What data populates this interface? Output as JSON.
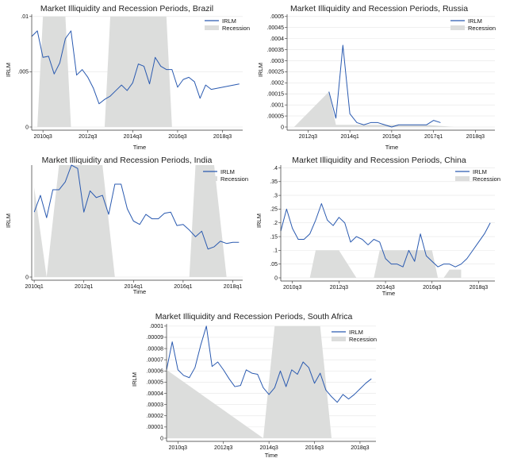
{
  "chart_data": [
    {
      "id": "brazil",
      "type": "line",
      "title": "Market Illiquidity and Recession Periods, Brazil",
      "xlabel": "Time",
      "ylabel": "IRLM",
      "xlim": [
        2010.0,
        2019.4
      ],
      "ylim": [
        0,
        0.0102
      ],
      "yticks": [
        {
          "v": 0,
          "label": "0"
        },
        {
          "v": 0.005,
          "label": ".005"
        },
        {
          "v": 0.01,
          "label": ".01"
        }
      ],
      "xticks": [
        {
          "v": 2010.5,
          "label": "2010q3"
        },
        {
          "v": 2012.5,
          "label": "2012q3"
        },
        {
          "v": 2014.5,
          "label": "2014q3"
        },
        {
          "v": 2016.5,
          "label": "2016q3"
        },
        {
          "v": 2018.5,
          "label": "2018q3"
        }
      ],
      "legend": {
        "line": "IRLM",
        "area": "Recession"
      },
      "series": [
        {
          "name": "IRLM",
          "x": [
            2010.0,
            2010.25,
            2010.5,
            2010.75,
            2011.0,
            2011.25,
            2011.5,
            2011.75,
            2012.0,
            2012.25,
            2012.5,
            2012.75,
            2013.0,
            2013.25,
            2013.5,
            2013.75,
            2014.0,
            2014.25,
            2014.5,
            2014.75,
            2015.0,
            2015.25,
            2015.5,
            2015.75,
            2016.0,
            2016.25,
            2016.5,
            2016.75,
            2017.0,
            2017.25,
            2017.5,
            2017.75,
            2018.0,
            2018.25,
            2018.5,
            2018.75,
            2019.0,
            2019.25
          ],
          "values": [
            0.0082,
            0.0087,
            0.0063,
            0.0064,
            0.0048,
            0.0058,
            0.008,
            0.0087,
            0.0047,
            0.0052,
            0.0045,
            0.0035,
            0.0021,
            0.0025,
            0.0028,
            0.0033,
            0.0038,
            0.0033,
            0.004,
            0.0057,
            0.0055,
            0.0039,
            0.0063,
            0.0055,
            0.0052,
            0.0052,
            0.0036,
            0.0043,
            0.0045,
            0.0041,
            0.0026,
            0.0038,
            0.0034,
            0.0035,
            0.0036,
            0.0037,
            0.0038,
            0.0039
          ]
        }
      ],
      "recession": {
        "x": [
          2010.0,
          2010.25,
          2010.5,
          2011.5,
          2011.75,
          2013.25,
          2013.5,
          2016.0,
          2016.25,
          2017.25,
          2017.5
        ],
        "values": [
          0,
          0,
          0.01,
          0.01,
          0,
          0,
          0.01,
          0.01,
          0,
          0,
          0
        ]
      }
    },
    {
      "id": "russia",
      "type": "line",
      "title": "Market Illiquidity and Recession Periods, Russia",
      "xlabel": "Time",
      "ylabel": "IRLM",
      "xlim": [
        2011.75,
        2019.2
      ],
      "ylim": [
        0,
        0.00051
      ],
      "yticks": [
        {
          "v": 0,
          "label": "0"
        },
        {
          "v": 5e-05,
          "label": ".00005"
        },
        {
          "v": 0.0001,
          "label": ".0001"
        },
        {
          "v": 0.00015,
          "label": ".00015"
        },
        {
          "v": 0.0002,
          "label": ".0002"
        },
        {
          "v": 0.00025,
          "label": ".00025"
        },
        {
          "v": 0.0003,
          "label": ".0003"
        },
        {
          "v": 0.00035,
          "label": ".00035"
        },
        {
          "v": 0.0004,
          "label": ".0004"
        },
        {
          "v": 0.00045,
          "label": ".00045"
        },
        {
          "v": 0.0005,
          "label": ".0005"
        }
      ],
      "xticks": [
        {
          "v": 2012.5,
          "label": "2012q3"
        },
        {
          "v": 2014.0,
          "label": "2014q1"
        },
        {
          "v": 2015.5,
          "label": "2015q3"
        },
        {
          "v": 2017.0,
          "label": "2017q1"
        },
        {
          "v": 2018.5,
          "label": "2018q3"
        }
      ],
      "legend": {
        "line": "IRLM",
        "area": "Recession"
      },
      "series": [
        {
          "name": "IRLM",
          "x": [
            2013.25,
            2013.5,
            2013.75,
            2014.0,
            2014.25,
            2014.5,
            2014.75,
            2015.0,
            2015.25,
            2015.5,
            2015.75,
            2016.0,
            2016.25,
            2016.5,
            2016.75,
            2017.0,
            2017.25
          ],
          "values": [
            0.00016,
            4e-05,
            0.00037,
            6e-05,
            2e-05,
            1e-05,
            2e-05,
            2e-05,
            1e-05,
            0.0,
            1e-05,
            1e-05,
            1e-05,
            1e-05,
            1e-05,
            3e-05,
            2e-05
          ]
        }
      ],
      "recession": {
        "x": [
          2012.0,
          2013.25,
          2013.5,
          2016.75,
          2017.75
        ],
        "values": [
          0,
          0.00016,
          1e-05,
          1e-05,
          0
        ]
      }
    },
    {
      "id": "india",
      "type": "line",
      "title": "Market Illiquidity and Recession Periods, India",
      "xlabel": "Time",
      "ylabel": "IRLM",
      "xlim": [
        2009.9,
        2018.4
      ],
      "ylim": [
        0,
        1.0
      ],
      "yticks": [
        {
          "v": 0,
          "label": "0"
        }
      ],
      "xticks": [
        {
          "v": 2010.0,
          "label": "2010q1"
        },
        {
          "v": 2012.0,
          "label": "2012q1"
        },
        {
          "v": 2014.0,
          "label": "2014q1"
        },
        {
          "v": 2016.0,
          "label": "2016q1"
        },
        {
          "v": 2018.0,
          "label": "2018q1"
        }
      ],
      "legend": {
        "line": "IRLM",
        "area": "Recession"
      },
      "series": [
        {
          "name": "IRLM",
          "x": [
            2010.0,
            2010.25,
            2010.5,
            2010.75,
            2011.0,
            2011.25,
            2011.5,
            2011.75,
            2012.0,
            2012.25,
            2012.5,
            2012.75,
            2013.0,
            2013.25,
            2013.5,
            2013.75,
            2014.0,
            2014.25,
            2014.5,
            2014.75,
            2015.0,
            2015.25,
            2015.5,
            2015.75,
            2016.0,
            2016.25,
            2016.5,
            2016.75,
            2017.0,
            2017.25,
            2017.5,
            2017.75,
            2018.0,
            2018.25
          ],
          "values": [
            0.58,
            0.73,
            0.53,
            0.78,
            0.78,
            0.85,
            1.0,
            0.97,
            0.58,
            0.77,
            0.71,
            0.73,
            0.56,
            0.83,
            0.83,
            0.61,
            0.5,
            0.47,
            0.56,
            0.52,
            0.52,
            0.57,
            0.58,
            0.46,
            0.47,
            0.42,
            0.36,
            0.41,
            0.25,
            0.27,
            0.32,
            0.3,
            0.31,
            0.31
          ]
        }
      ],
      "recession": {
        "x": [
          2010.0,
          2010.5,
          2011.0,
          2012.75,
          2013.25,
          2016.25,
          2016.5,
          2017.25,
          2017.75,
          2018.0
        ],
        "values": [
          0.8,
          0.0,
          1.0,
          1.0,
          0.0,
          0.0,
          1.0,
          1.0,
          0.0,
          0.0
        ]
      }
    },
    {
      "id": "china",
      "type": "line",
      "title": "Market Illiquidity and Recession Periods, China",
      "xlabel": "Time",
      "ylabel": "IRLM",
      "xlim": [
        2010.0,
        2019.2
      ],
      "ylim": [
        0,
        0.41
      ],
      "yticks": [
        {
          "v": 0,
          "label": "0"
        },
        {
          "v": 0.05,
          "label": ".05"
        },
        {
          "v": 0.1,
          "label": ".1"
        },
        {
          "v": 0.15,
          "label": ".15"
        },
        {
          "v": 0.2,
          "label": ".2"
        },
        {
          "v": 0.25,
          "label": ".25"
        },
        {
          "v": 0.3,
          "label": ".3"
        },
        {
          "v": 0.35,
          "label": ".35"
        },
        {
          "v": 0.4,
          "label": ".4"
        }
      ],
      "xticks": [
        {
          "v": 2010.5,
          "label": "2010q3"
        },
        {
          "v": 2012.5,
          "label": "2012q3"
        },
        {
          "v": 2014.5,
          "label": "2014q3"
        },
        {
          "v": 2016.5,
          "label": "2016q3"
        },
        {
          "v": 2018.5,
          "label": "2018q3"
        }
      ],
      "legend": {
        "line": "IRLM",
        "area": "Recession"
      },
      "series": [
        {
          "name": "IRLM",
          "x": [
            2010.0,
            2010.25,
            2010.5,
            2010.75,
            2011.0,
            2011.25,
            2011.5,
            2011.75,
            2012.0,
            2012.25,
            2012.5,
            2012.75,
            2013.0,
            2013.25,
            2013.5,
            2013.75,
            2014.0,
            2014.25,
            2014.5,
            2014.75,
            2015.0,
            2015.25,
            2015.5,
            2015.75,
            2016.0,
            2016.25,
            2016.5,
            2016.75,
            2017.0,
            2017.25,
            2017.5,
            2017.75,
            2018.0,
            2018.25,
            2018.5,
            2018.75,
            2019.0
          ],
          "values": [
            0.17,
            0.25,
            0.18,
            0.14,
            0.14,
            0.16,
            0.21,
            0.27,
            0.21,
            0.19,
            0.22,
            0.2,
            0.13,
            0.15,
            0.14,
            0.12,
            0.14,
            0.13,
            0.07,
            0.05,
            0.05,
            0.04,
            0.1,
            0.06,
            0.16,
            0.08,
            0.06,
            0.04,
            0.05,
            0.05,
            0.04,
            0.05,
            0.07,
            0.1,
            0.13,
            0.16,
            0.2
          ]
        }
      ],
      "recession": {
        "x": [
          2011.25,
          2011.5,
          2012.5,
          2013.25,
          2014.0,
          2014.25,
          2016.5,
          2016.75,
          2017.0,
          2017.25,
          2017.75
        ],
        "values": [
          0,
          0.1,
          0.1,
          0,
          0,
          0.1,
          0.1,
          0,
          0,
          0.03,
          0.03
        ]
      }
    },
    {
      "id": "south-africa",
      "type": "line",
      "title": "Market Illiquidity and Recession Periods, South Africa",
      "xlabel": "Time",
      "ylabel": "IRLM",
      "xlim": [
        2010.0,
        2019.2
      ],
      "ylim": [
        0,
        0.000102
      ],
      "yticks": [
        {
          "v": 0,
          "label": "0"
        },
        {
          "v": 1e-05,
          "label": ".00001"
        },
        {
          "v": 2e-05,
          "label": ".00002"
        },
        {
          "v": 3e-05,
          "label": ".00003"
        },
        {
          "v": 4e-05,
          "label": ".00004"
        },
        {
          "v": 5e-05,
          "label": ".00005"
        },
        {
          "v": 6e-05,
          "label": ".00006"
        },
        {
          "v": 7e-05,
          "label": ".00007"
        },
        {
          "v": 8e-05,
          "label": ".00008"
        },
        {
          "v": 9e-05,
          "label": ".00009"
        },
        {
          "v": 0.0001,
          "label": ".0001"
        }
      ],
      "xticks": [
        {
          "v": 2010.5,
          "label": "2010q3"
        },
        {
          "v": 2012.5,
          "label": "2012q3"
        },
        {
          "v": 2014.5,
          "label": "2014q3"
        },
        {
          "v": 2016.5,
          "label": "2016q3"
        },
        {
          "v": 2018.5,
          "label": "2018q3"
        }
      ],
      "legend": {
        "line": "IRLM",
        "area": "Recession"
      },
      "series": [
        {
          "name": "IRLM",
          "x": [
            2010.0,
            2010.25,
            2010.5,
            2010.75,
            2011.0,
            2011.25,
            2011.5,
            2011.75,
            2012.0,
            2012.25,
            2012.5,
            2012.75,
            2013.0,
            2013.25,
            2013.5,
            2013.75,
            2014.0,
            2014.25,
            2014.5,
            2014.75,
            2015.0,
            2015.25,
            2015.5,
            2015.75,
            2016.0,
            2016.25,
            2016.5,
            2016.75,
            2017.0,
            2017.25,
            2017.5,
            2017.75,
            2018.0,
            2018.25,
            2018.5,
            2018.75,
            2019.0
          ],
          "values": [
            6.1e-05,
            8.6e-05,
            6.1e-05,
            5.6e-05,
            5.4e-05,
            6.3e-05,
            8.3e-05,
            0.0001,
            6.4e-05,
            6.8e-05,
            6.1e-05,
            5.3e-05,
            4.6e-05,
            4.7e-05,
            6.1e-05,
            5.8e-05,
            5.7e-05,
            4.5e-05,
            3.9e-05,
            4.5e-05,
            6e-05,
            4.6e-05,
            6.1e-05,
            5.7e-05,
            6.8e-05,
            6.3e-05,
            4.9e-05,
            5.8e-05,
            4.3e-05,
            3.7e-05,
            3.2e-05,
            3.9e-05,
            3.5e-05,
            3.9e-05,
            4.4e-05,
            4.9e-05,
            5.3e-05
          ]
        }
      ],
      "recession": {
        "x": [
          2010.0,
          2014.25,
          2014.75,
          2016.75,
          2017.25,
          2017.5
        ],
        "values": [
          6.1e-05,
          0.0,
          0.0001,
          0.0001,
          0.0,
          0.0
        ]
      }
    }
  ]
}
